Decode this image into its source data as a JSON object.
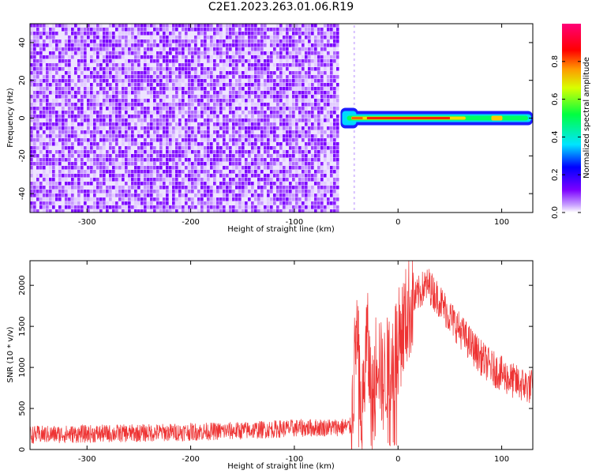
{
  "title": "C2E1.2023.263.01.06.R19",
  "chart_data": [
    {
      "type": "heatmap",
      "xlabel": "Height of straight line (km)",
      "ylabel": "Frequency (Hz)",
      "xlim": [
        -355,
        130
      ],
      "ylim": [
        -50,
        50
      ],
      "xticks": [
        -300,
        -200,
        -100,
        0,
        100
      ],
      "yticks": [
        -40,
        -20,
        0,
        20,
        40
      ],
      "noise_region_x": [
        -355,
        -57
      ],
      "signal_region_x": [
        -60,
        130
      ],
      "signal_peak_x": [
        -30,
        50
      ],
      "signal_frequency": 0,
      "colorbar": {
        "label": "Normalized spectral amplitude",
        "range": [
          0,
          1
        ],
        "ticks": [
          0.0,
          0.2,
          0.4,
          0.6,
          0.8
        ],
        "colors": [
          "#ffffff",
          "#7b00ff",
          "#0000ff",
          "#00ffff",
          "#00ff00",
          "#ffff00",
          "#ff0000",
          "#ff0088"
        ]
      }
    },
    {
      "type": "line",
      "xlabel": "Height of straight line (km)",
      "ylabel": "SNR (10 * v/v)",
      "xlim": [
        -355,
        130
      ],
      "ylim": [
        0,
        2300
      ],
      "xticks": [
        -300,
        -200,
        -100,
        0,
        100
      ],
      "yticks": [
        0,
        500,
        1000,
        1500,
        2000
      ],
      "color": "#ee3333",
      "series": [
        {
          "x": [
            -355,
            -300,
            -250,
            -200,
            -150,
            -100,
            -60,
            -45,
            -42,
            -40,
            -35,
            -30,
            -25,
            -20,
            -15,
            -10,
            -5,
            0,
            5,
            10,
            15,
            20,
            25,
            30,
            35,
            40,
            50,
            60,
            70,
            80,
            90,
            100,
            110,
            120,
            130
          ],
          "y": [
            180,
            190,
            200,
            215,
            230,
            260,
            270,
            280,
            1000,
            1500,
            300,
            1400,
            500,
            1300,
            800,
            1000,
            1200,
            1300,
            1500,
            1700,
            1800,
            1900,
            1980,
            2000,
            1900,
            1820,
            1620,
            1450,
            1280,
            1120,
            1000,
            920,
            840,
            790,
            760
          ]
        }
      ]
    }
  ]
}
